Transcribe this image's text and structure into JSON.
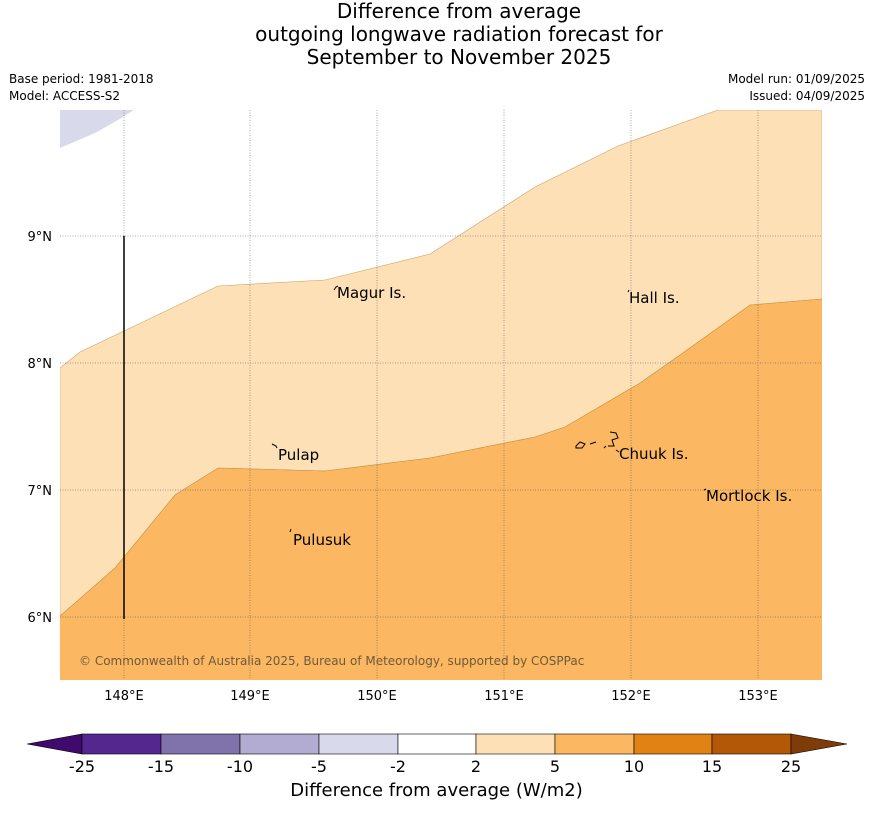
{
  "header": {
    "title_lines": [
      "Difference from average",
      "outgoing longwave radiation forecast for",
      "September to November 2025"
    ],
    "base_period": "Base period: 1981-2018",
    "model": "Model: ACCESS-S2",
    "model_run": "Model run: 01/09/2025",
    "issued": "Issued: 04/09/2025"
  },
  "map": {
    "lat_labels": [
      "9°N",
      "8°N",
      "7°N",
      "6°N"
    ],
    "lon_labels": [
      "148°E",
      "149°E",
      "150°E",
      "151°E",
      "152°E",
      "153°E"
    ],
    "places": [
      "Magur Is.",
      "Hall Is.",
      "Pulap",
      "Chuuk Is.",
      "Mortlock Is.",
      "Pulusuk"
    ],
    "copyright": "© Commonwealth of Australia 2025, Bureau of Meteorology, supported by COSPPac"
  },
  "colorbar": {
    "label": "Difference from average (W/m2)",
    "ticks": [
      "-25",
      "-15",
      "-10",
      "-5",
      "-2",
      "2",
      "5",
      "10",
      "15",
      "25"
    ],
    "colors": {
      "lt_-25": "#3f0a6b",
      "-25_-15": "#54278f",
      "-15_-10": "#8073ac",
      "-10_-5": "#b2abd2",
      "-5_-2": "#d8daeb",
      "-2_2": "#ffffff",
      "2_5": "#fde0b6",
      "5_10": "#fbb761",
      "10_15": "#e08214",
      "15_25": "#b35806",
      "gt_25": "#7f3b08"
    }
  }
}
